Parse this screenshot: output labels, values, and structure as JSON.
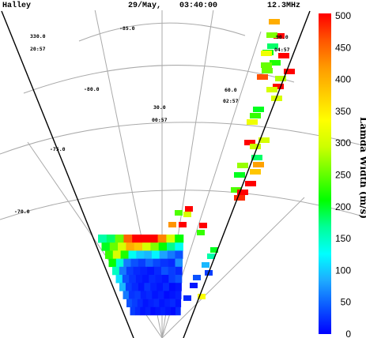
{
  "header": {
    "station": "Halley",
    "date": "29/May,",
    "time": "03:40:00",
    "frequency": "12.3MHz"
  },
  "grid_labels": {
    "lat": [
      "-85.0",
      "-80.0",
      "-75.0",
      "-70.0"
    ],
    "lon": [
      {
        "value": "330.0",
        "mlt": "20:57"
      },
      {
        "value": "30.0",
        "mlt": "00:57"
      },
      {
        "value": "60.0",
        "mlt": "02:57"
      },
      {
        "value": "90.0",
        "mlt": "04:57"
      }
    ]
  },
  "colors": {
    "stops": [
      "#0000ff",
      "#0a55ff",
      "#1eaaff",
      "#00ffff",
      "#00ff99",
      "#00ff00",
      "#66ff00",
      "#ccff00",
      "#ffff00",
      "#ffcc00",
      "#ff9900",
      "#ff5500",
      "#ff0000"
    ]
  },
  "chart_data": {
    "type": "heatmap",
    "title": "",
    "colorbar": {
      "label": "Lamda Width (m/s)",
      "min": 0,
      "max": 500,
      "ticks": [
        "0",
        "50",
        "100",
        "150",
        "200",
        "250",
        "300",
        "350",
        "400",
        "450",
        "500"
      ]
    },
    "near_cluster_values": [
      [
        160,
        180,
        250,
        450,
        500,
        500,
        500,
        430,
        300,
        210
      ],
      [
        200,
        250,
        300,
        400,
        380,
        300,
        260,
        210,
        170,
        130
      ],
      [
        230,
        300,
        220,
        130,
        100,
        90,
        120,
        80,
        60,
        40
      ],
      [
        210,
        140,
        60,
        40,
        30,
        50,
        35,
        25,
        20,
        70
      ],
      [
        150,
        60,
        30,
        20,
        15,
        10,
        20,
        40,
        30,
        20
      ],
      [
        110,
        40,
        25,
        15,
        10,
        20,
        15,
        10,
        30,
        40
      ],
      [
        90,
        30,
        20,
        10,
        25,
        15,
        10,
        20,
        5,
        10
      ],
      [
        60,
        25,
        30,
        15,
        20,
        10,
        15,
        5,
        10,
        15
      ],
      [
        40,
        30,
        20,
        10,
        15,
        20,
        10,
        15,
        20,
        10
      ],
      [
        30,
        20,
        10,
        15,
        5,
        10,
        15,
        10,
        5,
        20
      ]
    ],
    "far_beam_values": [
      400,
      500,
      260,
      210,
      500,
      220,
      250,
      280,
      500,
      300,
      200,
      230,
      320,
      500,
      290,
      300,
      270,
      410,
      380,
      240,
      500,
      200,
      320,
      180,
      500,
      250,
      460,
      480,
      180,
      500,
      300
    ],
    "mid_beam_values": [
      500,
      300,
      240,
      500,
      500,
      230,
      200,
      160,
      90,
      30,
      40,
      10,
      20,
      330,
      420
    ]
  }
}
